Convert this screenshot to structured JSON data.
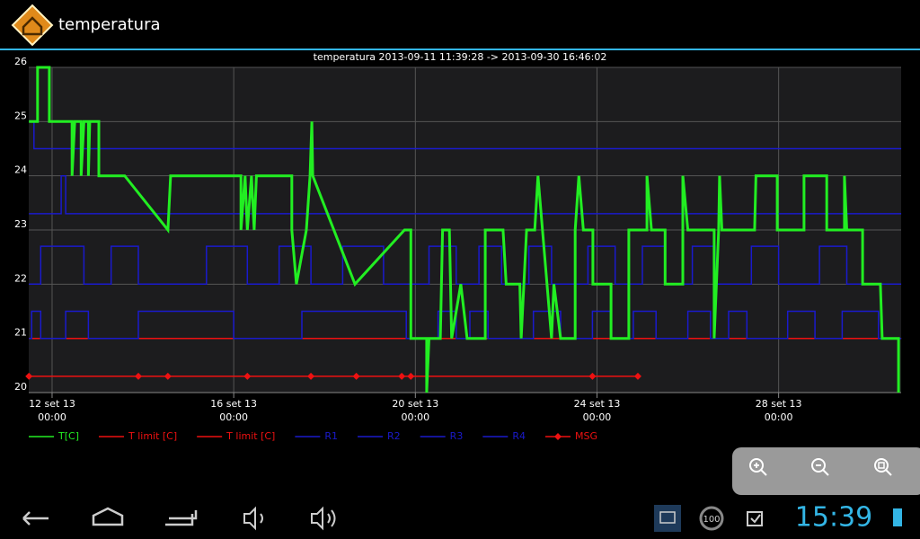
{
  "app_bar": {
    "title": "temperatura"
  },
  "chart_data": {
    "type": "line",
    "title": "temperatura 2013-09-11 11:39:28 -> 2013-09-30 16:46:02",
    "xlim": [
      11.486,
      30.698
    ],
    "xticks": [
      {
        "value": 12,
        "label": "12 set 13\n00:00"
      },
      {
        "value": 16,
        "label": "16 set 13\n00:00"
      },
      {
        "value": 20,
        "label": "20 set 13\n00:00"
      },
      {
        "value": 24,
        "label": "24 set 13\n00:00"
      },
      {
        "value": 28,
        "label": "28 set 13\n00:00"
      }
    ],
    "ylim": [
      20,
      26
    ],
    "yticks": [
      20,
      21,
      22,
      23,
      24,
      25,
      26
    ],
    "grid": true,
    "legend": "bottom-left",
    "series": [
      {
        "name": "T[C]",
        "color": "#22ee22",
        "x": [
          11.49,
          11.68,
          11.68,
          11.94,
          11.94,
          12.44,
          12.44,
          12.5,
          12.64,
          12.64,
          12.7,
          12.8,
          12.8,
          12.83,
          13.03,
          13.03,
          13.6,
          14.55,
          14.61,
          16.16,
          16.16,
          16.25,
          16.3,
          16.39,
          16.45,
          16.5,
          17.28,
          17.28,
          17.38,
          17.6,
          17.68,
          17.72,
          17.74,
          18.67,
          19.76,
          19.9,
          19.9,
          20.25,
          20.25,
          20.3,
          20.55,
          20.6,
          20.75,
          20.8,
          21.0,
          21.14,
          21.54,
          21.54,
          21.93,
          22.0,
          22.3,
          22.33,
          22.45,
          22.63,
          22.7,
          22.8,
          23.0,
          23.05,
          23.2,
          23.52,
          23.52,
          23.6,
          23.7,
          23.91,
          23.91,
          24.31,
          24.31,
          24.7,
          24.7,
          25.1,
          25.1,
          25.2,
          25.5,
          25.5,
          25.89,
          25.89,
          26.0,
          26.58,
          26.58,
          26.68,
          26.7,
          26.75,
          27.47,
          27.5,
          27.97,
          27.97,
          28.56,
          28.56,
          29.06,
          29.06,
          29.45,
          29.45,
          29.5,
          29.85,
          29.85,
          30.24,
          30.28,
          30.64,
          30.64
        ],
        "values": [
          25,
          25,
          26,
          26,
          25,
          25,
          24,
          25,
          25,
          24,
          25,
          25,
          24,
          25,
          25,
          24,
          24,
          23,
          24,
          24,
          23,
          24,
          23,
          24,
          23,
          24,
          24,
          23,
          22,
          23,
          24,
          25,
          24,
          22,
          23,
          23,
          21,
          21,
          20,
          21,
          21,
          23,
          23,
          21,
          22,
          21,
          21,
          23,
          23,
          22,
          22,
          21,
          23,
          23,
          24,
          23,
          21,
          22,
          21,
          21,
          23,
          24,
          23,
          23,
          22,
          22,
          21,
          21,
          23,
          23,
          24,
          23,
          23,
          22,
          22,
          24,
          23,
          23,
          21,
          23,
          24,
          23,
          23,
          24,
          24,
          23,
          23,
          24,
          24,
          23,
          23,
          24,
          23,
          23,
          22,
          22,
          21,
          21,
          20
        ]
      },
      {
        "name": "T limit [C]",
        "color": "#ee1111",
        "x": [
          11.49,
          30.7
        ],
        "values": [
          21,
          21
        ]
      },
      {
        "name": "T limit [C]",
        "color": "#ee1111",
        "x": [
          11.49,
          30.7
        ],
        "values": [
          21,
          21
        ]
      },
      {
        "name": "R1",
        "color": "#1a1acc",
        "x": [
          11.49,
          11.6,
          11.6,
          30.7
        ],
        "values": [
          25,
          25,
          24.5,
          24.5
        ]
      },
      {
        "name": "R2",
        "color": "#1a1acc",
        "x": [
          11.49,
          12.2,
          12.2,
          12.3,
          12.3,
          30.7
        ],
        "values": [
          23.3,
          23.3,
          24,
          24,
          23.3,
          23.3
        ]
      },
      {
        "name": "R3",
        "color": "#1a1acc",
        "x": [
          11.49,
          11.75,
          11.75,
          12.7,
          12.7,
          13.3,
          13.3,
          13.9,
          13.9,
          15.4,
          15.4,
          16.3,
          16.3,
          17.0,
          17.0,
          17.7,
          17.7,
          18.4,
          18.4,
          19.3,
          19.3,
          20.3,
          20.3,
          20.9,
          20.9,
          21.4,
          21.4,
          21.9,
          21.9,
          22.5,
          22.5,
          23.0,
          23.0,
          23.8,
          23.8,
          24.4,
          24.4,
          25.0,
          25.0,
          25.5,
          25.5,
          26.1,
          26.1,
          26.6,
          26.6,
          27.4,
          27.4,
          28.0,
          28.0,
          28.9,
          28.9,
          29.5,
          29.5,
          30.7
        ],
        "values": [
          22,
          22,
          22.7,
          22.7,
          22,
          22,
          22.7,
          22.7,
          22,
          22,
          22.7,
          22.7,
          22,
          22,
          22.7,
          22.7,
          22,
          22,
          22.7,
          22.7,
          22,
          22,
          22.7,
          22.7,
          22,
          22,
          22.7,
          22.7,
          22,
          22,
          22.7,
          22.7,
          22,
          22,
          22.7,
          22.7,
          22,
          22,
          22.7,
          22.7,
          22,
          22,
          22.7,
          22.7,
          22,
          22,
          22.7,
          22.7,
          22,
          22,
          22.7,
          22.7,
          22,
          22
        ]
      },
      {
        "name": "R4",
        "color": "#1a1acc",
        "x": [
          11.49,
          11.55,
          11.55,
          11.75,
          11.75,
          12.3,
          12.3,
          12.8,
          12.8,
          13.9,
          13.9,
          16.0,
          16.0,
          17.5,
          17.5,
          19.8,
          19.8,
          20.5,
          20.5,
          20.9,
          20.9,
          21.2,
          21.2,
          21.6,
          21.6,
          22.6,
          22.6,
          23.2,
          23.2,
          23.9,
          23.9,
          24.3,
          24.3,
          24.8,
          24.8,
          25.3,
          25.3,
          26.0,
          26.0,
          26.5,
          26.5,
          26.9,
          26.9,
          27.3,
          27.3,
          28.2,
          28.2,
          28.8,
          28.8,
          29.4,
          29.4,
          30.2,
          30.2,
          30.7
        ],
        "values": [
          21,
          21,
          21.5,
          21.5,
          21,
          21,
          21.5,
          21.5,
          21,
          21,
          21.5,
          21.5,
          21,
          21,
          21.5,
          21.5,
          21,
          21,
          21.5,
          21.5,
          21,
          21,
          21.5,
          21.5,
          21,
          21,
          21.5,
          21.5,
          21,
          21,
          21.5,
          21.5,
          21,
          21,
          21.5,
          21.5,
          21,
          21,
          21.5,
          21.5,
          21,
          21,
          21.5,
          21.5,
          21,
          21,
          21.5,
          21.5,
          21,
          21,
          21.5,
          21.5,
          21,
          21
        ]
      },
      {
        "name": "MSG",
        "color": "#ee1111",
        "marker": "diamond",
        "x": [
          11.49,
          13.9,
          14.55,
          16.3,
          17.7,
          18.7,
          19.7,
          19.9,
          23.9,
          24.9
        ],
        "values": [
          20.3,
          20.3,
          20.3,
          20.3,
          20.3,
          20.3,
          20.3,
          20.3,
          20.3,
          20.3
        ]
      }
    ]
  },
  "system_bar": {
    "badge": "100",
    "time": "15:39"
  }
}
